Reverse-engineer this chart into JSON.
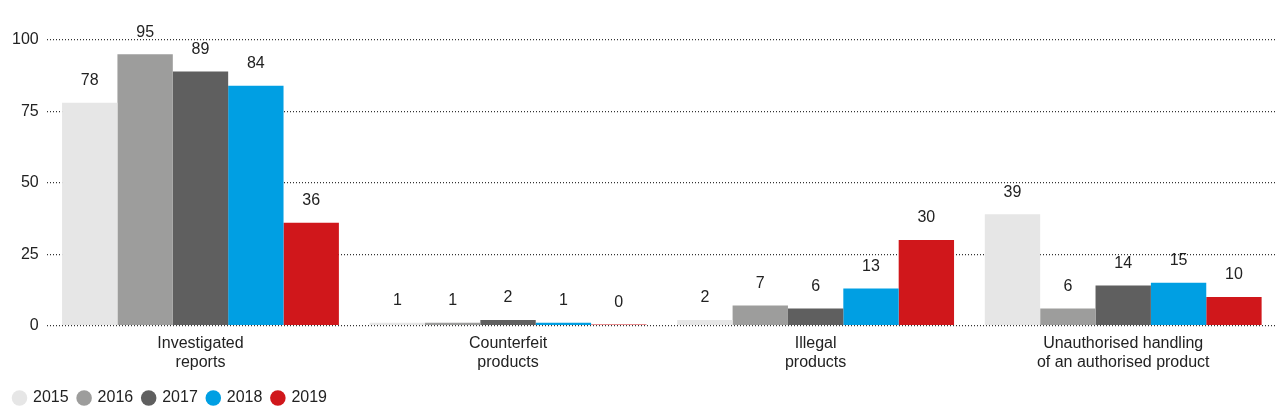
{
  "chart_data": {
    "type": "bar",
    "categories": [
      "Investigated reports",
      "Counterfeit products",
      "Illegal products",
      "Unauthorised handling of an authorised product"
    ],
    "series": [
      {
        "name": "2015",
        "color": "#e6e6e6",
        "values": [
          78,
          1,
          2,
          39
        ]
      },
      {
        "name": "2016",
        "color": "#9d9d9c",
        "values": [
          95,
          1,
          7,
          6
        ]
      },
      {
        "name": "2017",
        "color": "#5f5f5f",
        "values": [
          89,
          2,
          6,
          14
        ]
      },
      {
        "name": "2018",
        "color": "#009fe3",
        "values": [
          84,
          1,
          13,
          15
        ]
      },
      {
        "name": "2019",
        "color": "#d0171b",
        "values": [
          36,
          0,
          30,
          10
        ]
      }
    ],
    "ylim": [
      0,
      100
    ],
    "yticks": [
      0,
      25,
      50,
      75,
      100
    ],
    "grid": "y",
    "legend": "bottom left",
    "data_labels": true
  }
}
